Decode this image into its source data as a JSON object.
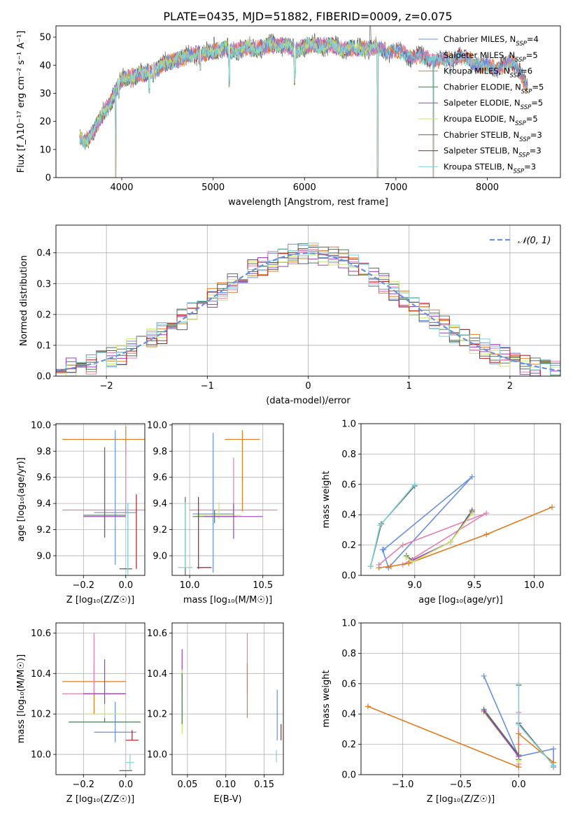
{
  "figure_title": "PLATE=0435, MJD=51882, FIBERID=0009, z=0.075",
  "colors": {
    "chabrier_miles": "#6a8fdb",
    "salpeter_miles": "#e57fb0",
    "kroupa_miles": "#e07b1f",
    "chabrier_elodie": "#4c7a5a",
    "salpeter_elodie": "#9d3ec2",
    "kroupa_elodie": "#c9e66b",
    "chabrier_stelib": "#606060",
    "salpeter_stelib": "#b01c1c",
    "kroupa_stelib": "#7fd4d8",
    "grid": "#b0b0b0"
  },
  "chart_data": [
    {
      "id": "spectrum",
      "type": "line",
      "xlabel": "wavelength [Angstrom, rest frame]",
      "ylabel": "Flux [f_λ10⁻¹⁷ erg cm⁻² s⁻¹ A⁻¹]",
      "xlim": [
        3280,
        8800
      ],
      "ylim": [
        0,
        54
      ],
      "xticks": [
        4000,
        5000,
        6000,
        7000,
        8000
      ],
      "yticks": [
        0,
        10,
        20,
        30,
        40,
        50
      ],
      "grid": false,
      "legend_position": "right",
      "legend": [
        {
          "key": "chabrier_miles",
          "label": "Chabrier MILES, N",
          "sub": "SSP",
          "tail": "=4"
        },
        {
          "key": "salpeter_miles",
          "label": "Salpeter MILES, N",
          "sub": "SSP",
          "tail": "=5"
        },
        {
          "key": "kroupa_miles",
          "label": "Kroupa MILES, N",
          "sub": "SSP",
          "tail": "=6"
        },
        {
          "key": "chabrier_elodie",
          "label": "Chabrier ELODIE, N",
          "sub": "SSP",
          "tail": "=5"
        },
        {
          "key": "salpeter_elodie",
          "label": "Salpeter ELODIE, N",
          "sub": "SSP",
          "tail": "=5"
        },
        {
          "key": "kroupa_elodie",
          "label": "Kroupa ELODIE, N",
          "sub": "SSP",
          "tail": "=5"
        },
        {
          "key": "chabrier_stelib",
          "label": "Chabrier STELIB, N",
          "sub": "SSP",
          "tail": "=3"
        },
        {
          "key": "salpeter_stelib",
          "label": "Salpeter STELIB, N",
          "sub": "SSP",
          "tail": "=3"
        },
        {
          "key": "kroupa_stelib",
          "label": "Kroupa STELIB, N",
          "sub": "SSP",
          "tail": "=3"
        }
      ],
      "continuum": [
        [
          3540,
          14
        ],
        [
          3600,
          13
        ],
        [
          3700,
          17
        ],
        [
          3800,
          23
        ],
        [
          3860,
          26
        ],
        [
          3920,
          30
        ],
        [
          3970,
          33
        ],
        [
          4000,
          35
        ],
        [
          4100,
          36
        ],
        [
          4200,
          37
        ],
        [
          4300,
          37
        ],
        [
          4400,
          39
        ],
        [
          4500,
          41
        ],
        [
          4600,
          42
        ],
        [
          4700,
          43
        ],
        [
          4800,
          44
        ],
        [
          4900,
          44
        ],
        [
          5000,
          45
        ],
        [
          5100,
          46
        ],
        [
          5200,
          45
        ],
        [
          5300,
          46
        ],
        [
          5400,
          46
        ],
        [
          5500,
          46
        ],
        [
          5600,
          47
        ],
        [
          5700,
          47
        ],
        [
          5800,
          47
        ],
        [
          5900,
          45
        ],
        [
          6000,
          47
        ],
        [
          6100,
          47
        ],
        [
          6200,
          47
        ],
        [
          6300,
          47
        ],
        [
          6400,
          46
        ],
        [
          6500,
          46
        ],
        [
          6600,
          46
        ],
        [
          6700,
          46
        ],
        [
          6800,
          46
        ],
        [
          6900,
          45
        ],
        [
          7000,
          45
        ],
        [
          7100,
          44
        ],
        [
          7200,
          43
        ],
        [
          7300,
          43
        ],
        [
          7400,
          42
        ],
        [
          7500,
          42
        ],
        [
          7600,
          42
        ],
        [
          7700,
          43
        ],
        [
          7800,
          42
        ],
        [
          7900,
          40
        ],
        [
          8000,
          40
        ],
        [
          8100,
          39
        ],
        [
          8200,
          40
        ],
        [
          8300,
          41
        ],
        [
          8360,
          38
        ],
        [
          8400,
          34
        ],
        [
          8440,
          32
        ]
      ],
      "dips": [
        [
          3934,
          0
        ],
        [
          3969,
          28
        ],
        [
          4102,
          32
        ],
        [
          4227,
          34
        ],
        [
          4300,
          30
        ],
        [
          4340,
          34
        ],
        [
          4861,
          38
        ],
        [
          5175,
          32
        ],
        [
          5270,
          42
        ],
        [
          5890,
          33
        ],
        [
          5895,
          35
        ],
        [
          6563,
          44
        ],
        [
          6800,
          0
        ],
        [
          7410,
          0
        ],
        [
          7600,
          36
        ]
      ],
      "peaks": [
        [
          5010,
          50
        ],
        [
          6720,
          54
        ]
      ]
    },
    {
      "id": "residuals",
      "type": "histogram",
      "xlabel": "(data-model)/error",
      "ylabel": "Normed distribution",
      "xlim": [
        -2.5,
        2.5
      ],
      "ylim": [
        0,
        0.49
      ],
      "xticks": [
        -2,
        -1,
        0,
        1,
        2
      ],
      "yticks": [
        0.0,
        0.1,
        0.2,
        0.3,
        0.4
      ],
      "grid": true,
      "legend_position": "top-right",
      "legend": [
        {
          "label": "𝒩(0, 1)",
          "key": "chabrier_miles"
        }
      ],
      "bin_width": 0.1,
      "bin_start": -2.5,
      "reference_curve": "normal(0,1)"
    },
    {
      "id": "age_vs_Z",
      "type": "scatter",
      "xlabel": "Z [log₁₀(Z/Z☉)]",
      "ylabel": "age  [log₁₀(age/yr)]",
      "xlim": [
        -0.33,
        0.09
      ],
      "ylim": [
        8.85,
        10.01
      ],
      "xticks": [
        -0.2,
        0.0
      ],
      "yticks": [
        9.0,
        9.2,
        9.4,
        9.6,
        9.8,
        10.0
      ],
      "grid": true,
      "points": [
        {
          "key": "kroupa_miles",
          "x": 0.0,
          "xerr": 0.3,
          "y": 9.89,
          "yerr": [
            0.12,
            0.1
          ]
        },
        {
          "key": "chabrier_miles",
          "x": -0.05,
          "xerr": 0.1,
          "y": 9.33,
          "yerr": [
            0.4,
            0.63
          ]
        },
        {
          "key": "salpeter_miles",
          "x": 0.0,
          "xerr": 0.3,
          "y": 9.35,
          "yerr": [
            0.03,
            0.5
          ]
        },
        {
          "key": "kroupa_elodie",
          "x": -0.1,
          "xerr": 0.1,
          "y": 9.3,
          "yerr": [
            0.15,
            0.53
          ]
        },
        {
          "key": "chabrier_elodie",
          "x": -0.1,
          "xerr": 0.1,
          "y": 9.31,
          "yerr": [
            0.17,
            0.52
          ]
        },
        {
          "key": "salpeter_elodie",
          "x": -0.1,
          "xerr": 0.1,
          "y": 9.3,
          "yerr": [
            0.16,
            0.5
          ]
        },
        {
          "key": "salpeter_stelib",
          "x": 0.05,
          "xerr": 0.0,
          "y": 9.4,
          "yerr": [
            0.5,
            0.07
          ]
        },
        {
          "key": "kroupa_stelib",
          "x": 0.01,
          "xerr": 0.01,
          "y": 9.4,
          "yerr": [
            0.55,
            0.0
          ]
        },
        {
          "key": "chabrier_stelib",
          "x": 0.0,
          "xerr": 0.03,
          "y": 8.9,
          "yerr": [
            0.0,
            0.0
          ]
        },
        {
          "key": "kroupa_stelib",
          "x": 0.01,
          "xerr": 0.0,
          "y": 9.1,
          "yerr": [
            0.22,
            0.3
          ]
        }
      ]
    },
    {
      "id": "age_vs_mass",
      "type": "scatter",
      "xlabel": "mass [log₁₀(M/M☉)]",
      "ylabel": "",
      "xlim": [
        9.88,
        10.64
      ],
      "ylim": [
        8.85,
        10.01
      ],
      "xticks": [
        10.0,
        10.5
      ],
      "yticks": [
        9.0,
        9.2,
        9.4,
        9.6,
        9.8,
        10.0
      ],
      "grid": true,
      "points": [
        {
          "key": "kroupa_miles",
          "x": 10.36,
          "xerr": 0.12,
          "y": 9.89,
          "yerr": [
            0.55,
            0.07
          ]
        },
        {
          "key": "chabrier_miles",
          "x": 10.16,
          "xerr": 0.14,
          "y": 9.32,
          "yerr": [
            0.45,
            0.62
          ]
        },
        {
          "key": "salpeter_miles",
          "x": 10.3,
          "xerr": 0.3,
          "y": 9.35,
          "yerr": [
            0.05,
            0.4
          ]
        },
        {
          "key": "kroupa_elodie",
          "x": 10.2,
          "xerr": 0.15,
          "y": 9.31,
          "yerr": [
            0.03,
            0.1
          ]
        },
        {
          "key": "chabrier_elodie",
          "x": 10.17,
          "xerr": 0.15,
          "y": 9.3,
          "yerr": [
            0.05,
            0.05
          ]
        },
        {
          "key": "salpeter_elodie",
          "x": 10.3,
          "xerr": 0.2,
          "y": 9.3,
          "yerr": [
            0.17,
            0.1
          ]
        },
        {
          "key": "salpeter_stelib",
          "x": 10.1,
          "xerr": 0.05,
          "y": 8.91,
          "yerr": [
            0.0,
            0.0
          ]
        },
        {
          "key": "salpeter_stelib",
          "x": 10.06,
          "xerr": 0.0,
          "y": 9.2,
          "yerr": [
            0.3,
            0.25
          ]
        },
        {
          "key": "chabrier_stelib",
          "x": 9.97,
          "xerr": 0.0,
          "y": 9.2,
          "yerr": [
            0.35,
            0.25
          ]
        },
        {
          "key": "kroupa_stelib",
          "x": 9.97,
          "xerr": 0.05,
          "y": 8.91,
          "yerr": [
            0.0,
            0.5
          ]
        }
      ]
    },
    {
      "id": "weight_vs_age",
      "type": "line",
      "xlabel": "age  [log₁₀(age/yr)]",
      "ylabel": "mass weight",
      "xlim": [
        8.55,
        10.22
      ],
      "ylim": [
        0,
        1.0
      ],
      "xticks": [
        9.0,
        9.5,
        10.0
      ],
      "yticks": [
        0.0,
        0.2,
        0.4,
        0.6,
        0.8,
        1.0
      ],
      "grid": true,
      "series": [
        {
          "key": "chabrier_miles",
          "x": [
            8.73,
            8.78,
            9.48,
            8.74
          ],
          "y": [
            0.17,
            0.05,
            0.65,
            0.17
          ]
        },
        {
          "key": "salpeter_miles",
          "x": [
            8.7,
            8.9,
            9.6,
            8.9
          ],
          "y": [
            0.07,
            0.2,
            0.41,
            0.07
          ]
        },
        {
          "key": "kroupa_miles",
          "x": [
            8.7,
            8.8,
            8.95,
            9.6,
            10.15
          ],
          "y": [
            0.05,
            0.06,
            0.08,
            0.27,
            0.45
          ]
        },
        {
          "key": "chabrier_elodie",
          "x": [
            8.93,
            8.98,
            9.3,
            9.48
          ],
          "y": [
            0.13,
            0.1,
            0.22,
            0.43
          ]
        },
        {
          "key": "salpeter_elodie",
          "x": [
            8.93,
            8.98,
            9.3,
            9.48
          ],
          "y": [
            0.12,
            0.1,
            0.22,
            0.42
          ]
        },
        {
          "key": "kroupa_elodie",
          "x": [
            8.93,
            8.98,
            9.3,
            9.48
          ],
          "y": [
            0.12,
            0.09,
            0.22,
            0.41
          ]
        },
        {
          "key": "chabrier_stelib",
          "x": [
            8.63,
            8.72,
            9.0
          ],
          "y": [
            0.06,
            0.34,
            0.59
          ]
        },
        {
          "key": "kroupa_stelib",
          "x": [
            8.63,
            8.71,
            9.0
          ],
          "y": [
            0.06,
            0.33,
            0.6
          ]
        }
      ]
    },
    {
      "id": "mass_vs_Z",
      "type": "scatter",
      "xlabel": "Z [log₁₀(Z/Z☉)]",
      "ylabel": "mass [log₁₀(M/M☉)]",
      "xlim": [
        -0.33,
        0.09
      ],
      "ylim": [
        9.9,
        10.65
      ],
      "xticks": [
        -0.2,
        0.0
      ],
      "yticks": [
        10.0,
        10.2,
        10.4,
        10.6
      ],
      "grid": true,
      "points": [
        {
          "key": "kroupa_miles",
          "x": -0.15,
          "xerr": 0.15,
          "y": 10.36,
          "yerr": [
            0.16,
            0.09
          ]
        },
        {
          "key": "chabrier_miles",
          "x": -0.05,
          "xerr": 0.1,
          "y": 10.11,
          "yerr": [
            0.05,
            0.15
          ]
        },
        {
          "key": "salpeter_miles",
          "x": -0.15,
          "xerr": 0.15,
          "y": 10.3,
          "yerr": [
            0.0,
            0.3
          ]
        },
        {
          "key": "kroupa_elodie",
          "x": -0.1,
          "xerr": 0.1,
          "y": 10.2,
          "yerr": [
            0.03,
            0.1
          ]
        },
        {
          "key": "chabrier_elodie",
          "x": -0.1,
          "xerr": 0.17,
          "y": 10.16,
          "yerr": [
            0.0,
            0.02
          ]
        },
        {
          "key": "salpeter_elodie",
          "x": -0.1,
          "xerr": 0.1,
          "y": 10.3,
          "yerr": [
            0.05,
            0.17
          ]
        },
        {
          "key": "salpeter_stelib",
          "x": 0.03,
          "xerr": 0.03,
          "y": 10.07,
          "yerr": [
            0.0,
            0.05
          ]
        },
        {
          "key": "chabrier_stelib",
          "x": 0.0,
          "xerr": 0.03,
          "y": 9.92,
          "yerr": [
            0.0,
            0.0
          ]
        },
        {
          "key": "kroupa_stelib",
          "x": 0.02,
          "xerr": 0.02,
          "y": 9.96,
          "yerr": [
            0.04,
            0.04
          ]
        }
      ]
    },
    {
      "id": "mass_vs_ebv",
      "type": "scatter",
      "xlabel": "E(B-V)",
      "ylabel": "",
      "xlim": [
        0.03,
        0.175
      ],
      "ylim": [
        9.9,
        10.65
      ],
      "xticks": [
        0.05,
        0.1,
        0.15
      ],
      "yticks": [
        10.0,
        10.2,
        10.4,
        10.6
      ],
      "grid": true,
      "points": [
        {
          "key": "salpeter_elodie",
          "x": 0.043,
          "xerr": 0.0,
          "y": 10.4,
          "yerr": [
            0.08,
            0.12
          ]
        },
        {
          "key": "kroupa_elodie",
          "x": 0.043,
          "xerr": 0.0,
          "y": 10.2,
          "yerr": [
            0.1,
            0.22
          ]
        },
        {
          "key": "chabrier_elodie",
          "x": 0.043,
          "xerr": 0.0,
          "y": 10.25,
          "yerr": [
            0.1,
            0.15
          ]
        },
        {
          "key": "salpeter_miles",
          "x": 0.128,
          "xerr": 0.0,
          "y": 10.4,
          "yerr": [
            0.1,
            0.2
          ]
        },
        {
          "key": "kroupa_miles",
          "x": 0.128,
          "xerr": 0.0,
          "y": 10.3,
          "yerr": [
            0.12,
            0.15
          ]
        },
        {
          "key": "chabrier_miles",
          "x": 0.167,
          "xerr": 0.0,
          "y": 10.2,
          "yerr": [
            0.13,
            0.12
          ]
        },
        {
          "key": "salpeter_stelib",
          "x": 0.172,
          "xerr": 0.0,
          "y": 10.1,
          "yerr": [
            0.03,
            0.05
          ]
        },
        {
          "key": "kroupa_stelib",
          "x": 0.166,
          "xerr": 0.0,
          "y": 9.99,
          "yerr": [
            0.03,
            0.03
          ]
        }
      ]
    },
    {
      "id": "weight_vs_Z",
      "type": "line",
      "xlabel": "Z [log₁₀(Z/Z☉)]",
      "ylabel": "mass weight",
      "xlim": [
        -1.36,
        0.36
      ],
      "ylim": [
        0,
        1.0
      ],
      "xticks": [
        -1.0,
        -0.5,
        0.0
      ],
      "yticks": [
        0.0,
        0.2,
        0.4,
        0.6,
        0.8,
        1.0
      ],
      "grid": true,
      "series": [
        {
          "key": "chabrier_miles",
          "x": [
            -0.3,
            0.0,
            0.3,
            0.3
          ],
          "y": [
            0.65,
            0.12,
            0.17,
            0.05
          ]
        },
        {
          "key": "salpeter_miles",
          "x": [
            0.0,
            0.0,
            0.0
          ],
          "y": [
            0.41,
            0.2,
            0.07
          ]
        },
        {
          "key": "kroupa_miles",
          "x": [
            -1.3,
            0.0,
            0.0,
            0.3
          ],
          "y": [
            0.45,
            0.05,
            0.27,
            0.08
          ]
        },
        {
          "key": "chabrier_elodie",
          "x": [
            -0.3,
            0.0,
            0.0
          ],
          "y": [
            0.43,
            0.13,
            0.1
          ]
        },
        {
          "key": "kroupa_elodie",
          "x": [
            -0.3,
            0.0,
            0.0
          ],
          "y": [
            0.41,
            0.12,
            0.09
          ]
        },
        {
          "key": "salpeter_elodie",
          "x": [
            -0.3,
            0.0
          ],
          "y": [
            0.42,
            0.12
          ]
        },
        {
          "key": "chabrier_stelib",
          "x": [
            0.0,
            0.0,
            0.3
          ],
          "y": [
            0.59,
            0.34,
            0.06
          ]
        },
        {
          "key": "kroupa_stelib",
          "x": [
            0.0,
            0.0,
            0.3
          ],
          "y": [
            0.6,
            0.33,
            0.06
          ]
        }
      ]
    }
  ]
}
